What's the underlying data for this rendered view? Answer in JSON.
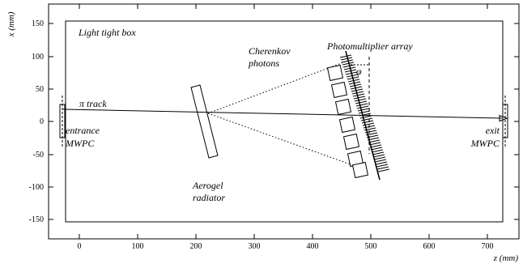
{
  "axes": {
    "xlabel": "z (mm)",
    "ylabel": "x (mm)",
    "z_ticks": [
      "0",
      "100",
      "200",
      "300",
      "400",
      "500",
      "600",
      "700"
    ],
    "x_ticks": [
      "150",
      "100",
      "50",
      "0",
      "-50",
      "-100",
      "-150"
    ]
  },
  "labels": {
    "box": "Light tight box",
    "photons_1": "Cherenkov",
    "photons_2": "photons",
    "pmt": "Photomultiplier array",
    "phi": "φ",
    "track": "π track",
    "entrance_1": "entrance",
    "entrance_2": "MWPC",
    "exit_1": "exit",
    "exit_2": "MWPC",
    "aerogel_1": "Aerogel",
    "aerogel_2": "radiator"
  }
}
